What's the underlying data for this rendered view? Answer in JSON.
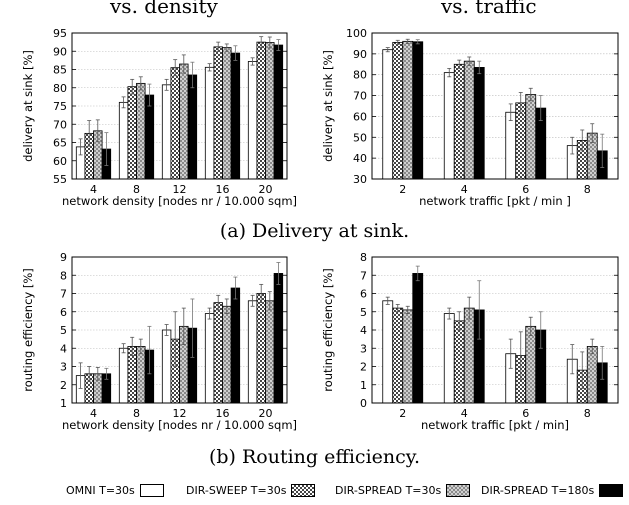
{
  "titles": {
    "left": "vs. density",
    "right": "vs. traffic"
  },
  "captions": {
    "a": "(a) Delivery at sink.",
    "b": "(b) Routing efficiency."
  },
  "legend": [
    {
      "label": "OMNI T=30s",
      "pattern": "white"
    },
    {
      "label": "DIR-SWEEP T=30s",
      "pattern": "checker-dark"
    },
    {
      "label": "DIR-SPREAD T=30s",
      "pattern": "checker-light"
    },
    {
      "label": "DIR-SPREAD T=180s",
      "pattern": "black"
    }
  ],
  "chart_data": [
    {
      "type": "bar",
      "id": "delivery-vs-density",
      "xlabel": "network density [nodes nr / 10.000 sqm]",
      "ylabel": "delivery at sink [%]",
      "ylim": [
        55,
        95
      ],
      "yticks": [
        55,
        60,
        65,
        70,
        75,
        80,
        85,
        90,
        95
      ],
      "categories": [
        "4",
        "8",
        "12",
        "16",
        "20"
      ],
      "series": [
        {
          "name": "OMNI T=30s",
          "values": [
            63.8,
            76,
            80.8,
            85.6,
            87.2
          ],
          "errors": [
            2.2,
            1.5,
            1.5,
            1,
            1
          ]
        },
        {
          "name": "DIR-SWEEP T=30s",
          "values": [
            67.5,
            80.3,
            85.5,
            91.2,
            92.5
          ],
          "errors": [
            3.5,
            2,
            2.2,
            1.3,
            1.5
          ]
        },
        {
          "name": "DIR-SPREAD T=30s",
          "values": [
            68.2,
            81.2,
            86.5,
            91,
            92.4
          ],
          "errors": [
            3,
            1.8,
            2.5,
            1,
            1.5
          ]
        },
        {
          "name": "DIR-SPREAD T=180s",
          "values": [
            63.2,
            78,
            83.5,
            89.5,
            91.7
          ],
          "errors": [
            4.5,
            3,
            3.5,
            2,
            1.5
          ]
        }
      ]
    },
    {
      "type": "bar",
      "id": "delivery-vs-traffic",
      "xlabel": "network traffic [pkt / min ]",
      "ylabel": "delivery at sink [%]",
      "ylim": [
        30,
        100
      ],
      "yticks": [
        30,
        40,
        50,
        60,
        70,
        80,
        90,
        100
      ],
      "categories": [
        "2",
        "4",
        "6",
        "8"
      ],
      "series": [
        {
          "name": "OMNI T=30s",
          "values": [
            92,
            81,
            62,
            46
          ],
          "errors": [
            1,
            2,
            4,
            4
          ]
        },
        {
          "name": "DIR-SWEEP T=30s",
          "values": [
            95.5,
            85,
            66.5,
            48.5
          ],
          "errors": [
            1,
            2,
            5,
            5
          ]
        },
        {
          "name": "DIR-SPREAD T=30s",
          "values": [
            96,
            86.5,
            70.5,
            52
          ],
          "errors": [
            1,
            2,
            3,
            4.5
          ]
        },
        {
          "name": "DIR-SPREAD T=180s",
          "values": [
            95.8,
            83.5,
            64,
            43.5
          ],
          "errors": [
            1,
            3,
            6,
            8
          ]
        }
      ]
    },
    {
      "type": "bar",
      "id": "efficiency-vs-density",
      "xlabel": "network density [nodes nr / 10.000 sqm]",
      "ylabel": "routing efficiency [%]",
      "ylim": [
        1,
        9
      ],
      "yticks": [
        1,
        2,
        3,
        4,
        5,
        6,
        7,
        8,
        9
      ],
      "categories": [
        "4",
        "8",
        "12",
        "16",
        "20"
      ],
      "series": [
        {
          "name": "OMNI T=30s",
          "values": [
            2.5,
            4,
            5,
            5.9,
            6.6
          ],
          "errors": [
            0.7,
            0.25,
            0.3,
            0.3,
            0.3
          ]
        },
        {
          "name": "DIR-SWEEP T=30s",
          "values": [
            2.6,
            4.1,
            4.5,
            6.5,
            7
          ],
          "errors": [
            0.4,
            0.5,
            1.5,
            0.4,
            0.5
          ]
        },
        {
          "name": "DIR-SPREAD T=30s",
          "values": [
            2.6,
            4.1,
            5.2,
            6.3,
            6.6
          ],
          "errors": [
            0.35,
            0.4,
            1,
            0.4,
            0.5
          ]
        },
        {
          "name": "DIR-SPREAD T=180s",
          "values": [
            2.6,
            3.9,
            5.1,
            7.3,
            8.1
          ],
          "errors": [
            0.3,
            1.3,
            1.6,
            0.6,
            0.6
          ]
        }
      ]
    },
    {
      "type": "bar",
      "id": "efficiency-vs-traffic",
      "xlabel": "network traffic [pkt / min]",
      "ylabel": "routing efficiency [%]",
      "ylim": [
        0,
        8
      ],
      "yticks": [
        0,
        1,
        2,
        3,
        4,
        5,
        6,
        7,
        8
      ],
      "categories": [
        "2",
        "4",
        "6",
        "8"
      ],
      "series": [
        {
          "name": "OMNI T=30s",
          "values": [
            5.6,
            4.9,
            2.7,
            2.4
          ],
          "errors": [
            0.2,
            0.3,
            0.8,
            0.8
          ]
        },
        {
          "name": "DIR-SWEEP T=30s",
          "values": [
            5.2,
            4.5,
            2.6,
            1.8
          ],
          "errors": [
            0.2,
            0.5,
            1.3,
            1
          ]
        },
        {
          "name": "DIR-SPREAD T=30s",
          "values": [
            5.1,
            5.2,
            4.2,
            3.1
          ],
          "errors": [
            0.2,
            0.6,
            0.5,
            0.4
          ]
        },
        {
          "name": "DIR-SPREAD T=180s",
          "values": [
            7.1,
            5.1,
            4,
            2.2
          ],
          "errors": [
            0.4,
            1.6,
            1,
            0.9
          ]
        }
      ]
    }
  ]
}
